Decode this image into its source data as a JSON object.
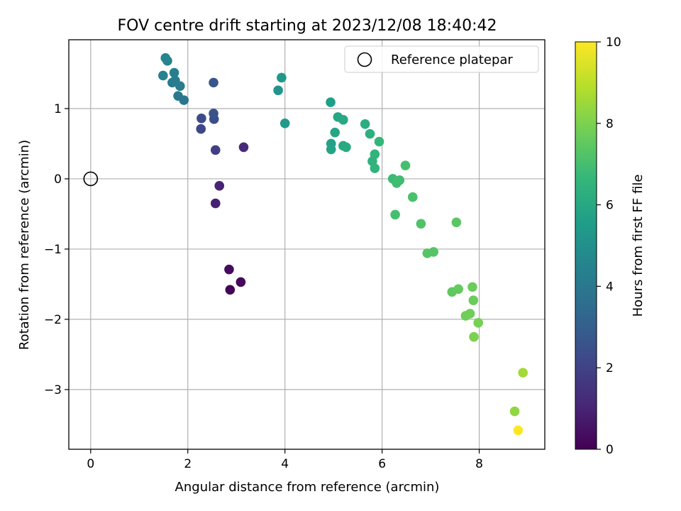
{
  "chart_data": {
    "type": "scatter",
    "title": "FOV centre drift starting at 2023/12/08 18:40:42",
    "xlabel": "Angular distance from reference (arcmin)",
    "ylabel": "Rotation from reference (arcmin)",
    "xlim": [
      -0.45,
      9.35
    ],
    "ylim": [
      -3.85,
      1.98
    ],
    "xticks": [
      0,
      2,
      4,
      6,
      8
    ],
    "yticks": [
      -3,
      -2,
      -1,
      0,
      1
    ],
    "xtick_labels": [
      "0",
      "2",
      "4",
      "6",
      "8"
    ],
    "ytick_labels": [
      "−3",
      "−2",
      "−1",
      "0",
      "1"
    ],
    "grid": true,
    "legend": {
      "placement": "top-right",
      "label": "Reference platepar"
    },
    "reference_point": {
      "x": 0,
      "y": 0
    },
    "colormap": "viridis",
    "colors": {
      "viridis": [
        "#440154",
        "#482878",
        "#3e4989",
        "#31688e",
        "#26828e",
        "#1f9e89",
        "#35b779",
        "#6ece58",
        "#b5de2b",
        "#fde725"
      ],
      "grid": "#b0b0b0",
      "reference_marker": "#000000"
    },
    "colorbar": {
      "label": "Hours from first FF file",
      "range": [
        0,
        10
      ],
      "ticks": [
        0,
        2,
        4,
        6,
        8,
        10
      ],
      "tick_labels": [
        "0",
        "2",
        "4",
        "6",
        "8",
        "10"
      ]
    },
    "series": [
      {
        "points": [
          {
            "x": 2.87,
            "y": -1.58,
            "h": 0.1
          },
          {
            "x": 3.09,
            "y": -1.47,
            "h": 0.2
          },
          {
            "x": 2.85,
            "y": -1.29,
            "h": 0.3
          },
          {
            "x": 2.57,
            "y": -0.35,
            "h": 0.9
          },
          {
            "x": 2.65,
            "y": -0.1,
            "h": 1.0
          },
          {
            "x": 3.15,
            "y": 0.45,
            "h": 1.2
          },
          {
            "x": 2.57,
            "y": 0.41,
            "h": 1.9
          },
          {
            "x": 2.27,
            "y": 0.71,
            "h": 2.2
          },
          {
            "x": 2.28,
            "y": 0.86,
            "h": 2.3
          },
          {
            "x": 2.54,
            "y": 0.85,
            "h": 2.4
          },
          {
            "x": 2.53,
            "y": 0.93,
            "h": 2.5
          },
          {
            "x": 2.53,
            "y": 1.37,
            "h": 2.7
          },
          {
            "x": 1.92,
            "y": 1.12,
            "h": 3.9
          },
          {
            "x": 1.8,
            "y": 1.18,
            "h": 4.0
          },
          {
            "x": 1.68,
            "y": 1.37,
            "h": 4.1
          },
          {
            "x": 1.84,
            "y": 1.32,
            "h": 4.2
          },
          {
            "x": 1.74,
            "y": 1.4,
            "h": 4.2
          },
          {
            "x": 1.72,
            "y": 1.51,
            "h": 4.3
          },
          {
            "x": 1.49,
            "y": 1.47,
            "h": 4.4
          },
          {
            "x": 1.58,
            "y": 1.68,
            "h": 4.5
          },
          {
            "x": 1.54,
            "y": 1.72,
            "h": 4.6
          },
          {
            "x": 3.86,
            "y": 1.26,
            "h": 5.2
          },
          {
            "x": 3.93,
            "y": 1.44,
            "h": 5.3
          },
          {
            "x": 4.0,
            "y": 0.79,
            "h": 5.4
          },
          {
            "x": 4.94,
            "y": 1.09,
            "h": 5.6
          },
          {
            "x": 4.95,
            "y": 0.5,
            "h": 5.7
          },
          {
            "x": 4.95,
            "y": 0.42,
            "h": 5.8
          },
          {
            "x": 5.03,
            "y": 0.66,
            "h": 5.9
          },
          {
            "x": 5.09,
            "y": 0.88,
            "h": 5.9
          },
          {
            "x": 5.2,
            "y": 0.84,
            "h": 6.0
          },
          {
            "x": 5.2,
            "y": 0.47,
            "h": 6.0
          },
          {
            "x": 5.26,
            "y": 0.45,
            "h": 6.1
          },
          {
            "x": 5.65,
            "y": 0.78,
            "h": 6.2
          },
          {
            "x": 5.75,
            "y": 0.64,
            "h": 6.3
          },
          {
            "x": 5.8,
            "y": 0.25,
            "h": 6.4
          },
          {
            "x": 5.85,
            "y": 0.15,
            "h": 6.5
          },
          {
            "x": 5.85,
            "y": 0.35,
            "h": 6.5
          },
          {
            "x": 5.94,
            "y": 0.53,
            "h": 6.6
          },
          {
            "x": 6.22,
            "y": 0.0,
            "h": 6.8
          },
          {
            "x": 6.3,
            "y": -0.06,
            "h": 6.9
          },
          {
            "x": 6.36,
            "y": -0.02,
            "h": 6.9
          },
          {
            "x": 6.48,
            "y": 0.19,
            "h": 7.0
          },
          {
            "x": 6.27,
            "y": -0.51,
            "h": 7.0
          },
          {
            "x": 6.63,
            "y": -0.26,
            "h": 7.1
          },
          {
            "x": 6.8,
            "y": -0.64,
            "h": 7.2
          },
          {
            "x": 6.93,
            "y": -1.06,
            "h": 7.3
          },
          {
            "x": 7.06,
            "y": -1.04,
            "h": 7.3
          },
          {
            "x": 7.53,
            "y": -0.62,
            "h": 7.4
          },
          {
            "x": 7.44,
            "y": -1.61,
            "h": 7.5
          },
          {
            "x": 7.57,
            "y": -1.57,
            "h": 7.6
          },
          {
            "x": 7.86,
            "y": -1.54,
            "h": 7.7
          },
          {
            "x": 7.88,
            "y": -1.73,
            "h": 7.7
          },
          {
            "x": 7.72,
            "y": -1.95,
            "h": 7.8
          },
          {
            "x": 7.81,
            "y": -1.92,
            "h": 7.8
          },
          {
            "x": 7.98,
            "y": -2.05,
            "h": 7.9
          },
          {
            "x": 7.89,
            "y": -2.25,
            "h": 8.0
          },
          {
            "x": 8.73,
            "y": -3.31,
            "h": 8.3
          },
          {
            "x": 8.9,
            "y": -2.76,
            "h": 8.6
          },
          {
            "x": 8.8,
            "y": -3.58,
            "h": 10.0
          }
        ]
      }
    ]
  }
}
